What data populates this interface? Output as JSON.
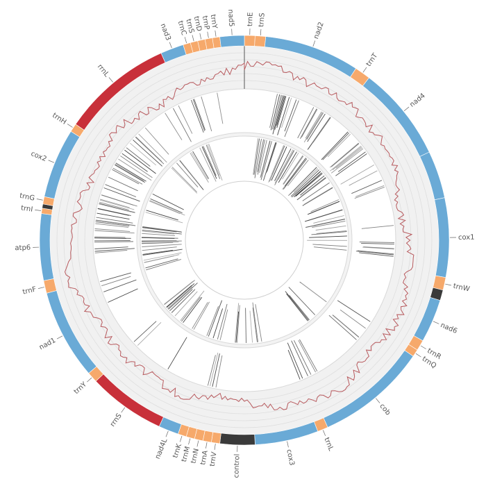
{
  "diagram": {
    "segment_colors": {
      "gene": "#6aaad6",
      "trna": "#f6a96b",
      "rrna": "#c8303a",
      "control": "#3a3a3a"
    },
    "features": [
      {
        "label": "trnE",
        "kind": "trna",
        "start": 0.0,
        "end": 1.0
      },
      {
        "label": "trnS",
        "kind": "trna",
        "start": 1.0,
        "end": 2.0
      },
      {
        "label": "nad2",
        "kind": "gene",
        "start": 2.0,
        "end": 11.0
      },
      {
        "label": "trnT",
        "kind": "trna",
        "start": 11.0,
        "end": 12.5
      },
      {
        "label": "nad4",
        "kind": "gene",
        "start": 12.5,
        "end": 21.5
      },
      {
        "label": "",
        "kind": "gene",
        "start": 21.5,
        "end": 26.0
      },
      {
        "label": "cox1",
        "kind": "gene",
        "start": 26.0,
        "end": 33.5
      },
      {
        "label": "trnW",
        "kind": "trna",
        "start": 33.5,
        "end": 34.7
      },
      {
        "label": "",
        "kind": "control",
        "start": 34.7,
        "end": 35.7
      },
      {
        "label": "nad6",
        "kind": "gene",
        "start": 35.7,
        "end": 39.8
      },
      {
        "label": "trnR",
        "kind": "trna",
        "start": 39.8,
        "end": 40.8
      },
      {
        "label": "trnQ",
        "kind": "trna",
        "start": 40.8,
        "end": 41.5
      },
      {
        "label": "cob",
        "kind": "gene",
        "start": 41.5,
        "end": 52.0
      },
      {
        "label": "trnL",
        "kind": "trna",
        "start": 52.0,
        "end": 53.0
      },
      {
        "label": "cox3",
        "kind": "gene",
        "start": 53.0,
        "end": 59.0
      },
      {
        "label": "control",
        "kind": "control",
        "start": 59.0,
        "end": 62.3
      },
      {
        "label": "trnV",
        "kind": "trna",
        "start": 62.3,
        "end": 63.1
      },
      {
        "label": "trnA",
        "kind": "trna",
        "start": 63.1,
        "end": 63.9
      },
      {
        "label": "trnN",
        "kind": "trna",
        "start": 63.9,
        "end": 64.7
      },
      {
        "label": "trnM",
        "kind": "trna",
        "start": 64.7,
        "end": 65.5
      },
      {
        "label": "trnK",
        "kind": "trna",
        "start": 65.5,
        "end": 66.3
      },
      {
        "label": "nad4L",
        "kind": "gene",
        "start": 66.3,
        "end": 68.2
      },
      {
        "label": "rrnS",
        "kind": "rrna",
        "start": 68.2,
        "end": 75.5
      },
      {
        "label": "trnY",
        "kind": "trna",
        "start": 75.5,
        "end": 76.5
      },
      {
        "label": "nad1",
        "kind": "gene",
        "start": 76.5,
        "end": 85.0
      },
      {
        "label": "trnF",
        "kind": "trna",
        "start": 85.0,
        "end": 86.2
      },
      {
        "label": "atp6",
        "kind": "gene",
        "start": 86.2,
        "end": 92.5
      },
      {
        "label": "trnI",
        "kind": "trna",
        "start": 92.5,
        "end": 93.0
      },
      {
        "label": "",
        "kind": "control",
        "start": 93.0,
        "end": 93.4
      },
      {
        "label": "trnG",
        "kind": "trna",
        "start": 93.4,
        "end": 94.1
      },
      {
        "label": "cox2",
        "kind": "gene",
        "start": 94.1,
        "end": 100.7
      },
      {
        "label": "trnH",
        "kind": "trna",
        "start": 100.7,
        "end": 101.5
      },
      {
        "label": "rrnL",
        "kind": "rrna",
        "start": 101.5,
        "end": 112.0
      },
      {
        "label": "nad3",
        "kind": "gene",
        "start": 112.0,
        "end": 114.2
      },
      {
        "label": "trnC",
        "kind": "trna",
        "start": 114.2,
        "end": 114.9
      },
      {
        "label": "trnS",
        "kind": "trna",
        "start": 114.9,
        "end": 115.6
      },
      {
        "label": "trnD",
        "kind": "trna",
        "start": 115.6,
        "end": 116.3
      },
      {
        "label": "trnP",
        "kind": "trna",
        "start": 116.3,
        "end": 117.0
      },
      {
        "label": "trnY",
        "kind": "trna",
        "start": 117.0,
        "end": 117.7
      },
      {
        "label": "nad5",
        "kind": "gene",
        "start": 117.7,
        "end": 120.0
      }
    ]
  }
}
